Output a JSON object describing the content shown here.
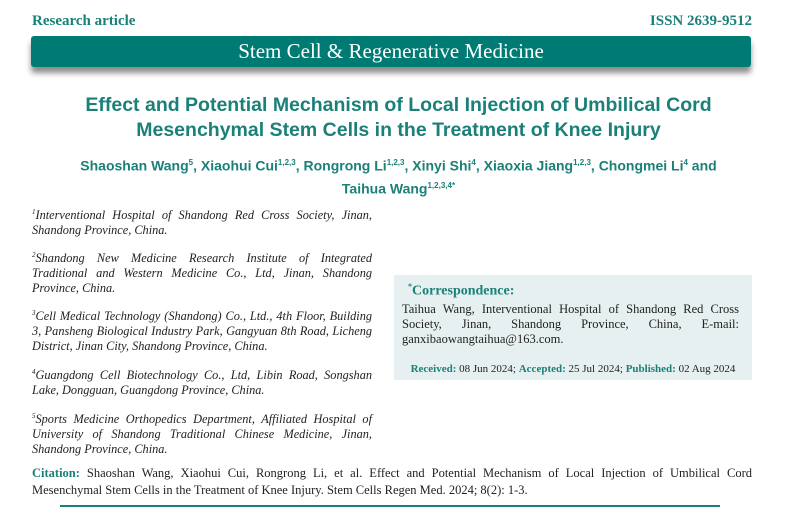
{
  "header": {
    "article_type": "Research article",
    "issn": "ISSN 2639-9512",
    "journal": "Stem Cell & Regenerative Medicine"
  },
  "title": "Effect and Potential Mechanism of Local Injection of Umbilical Cord Mesenchymal Stem Cells in the Treatment of Knee Injury",
  "authors": [
    {
      "name": "Shaoshan Wang",
      "sup": "5",
      "sep": ", "
    },
    {
      "name": "Xiaohui Cui",
      "sup": "1,2,3",
      "sep": ", "
    },
    {
      "name": "Rongrong Li",
      "sup": "1,2,3",
      "sep": ", "
    },
    {
      "name": "Xinyi Shi",
      "sup": "4",
      "sep": ", "
    },
    {
      "name": "Xiaoxia Jiang",
      "sup": "1,2,3",
      "sep": ", "
    },
    {
      "name": "Chongmei Li",
      "sup": "4",
      "sep": " and "
    },
    {
      "name": "Taihua Wang",
      "sup": "1,2,3,4*",
      "sep": ""
    }
  ],
  "affiliations": [
    {
      "num": "1",
      "text": "Interventional Hospital of Shandong Red Cross Society, Jinan, Shandong Province, China."
    },
    {
      "num": "2",
      "text": "Shandong New Medicine Research Institute of Integrated Traditional and Western Medicine Co., Ltd, Jinan, Shandong Province, China."
    },
    {
      "num": "3",
      "text": "Cell Medical Technology (Shandong) Co., Ltd., 4th Floor, Building 3, Pansheng Biological Industry Park, Gangyuan 8th Road, Licheng District, Jinan City, Shandong Province, China."
    },
    {
      "num": "4",
      "text": "Guangdong Cell Biotechnology Co., Ltd, Libin Road, Songshan Lake, Dongguan, Guangdong Province, China."
    },
    {
      "num": "5",
      "text": "Sports Medicine Orthopedics Department, Affiliated Hospital of University of Shandong Traditional Chinese Medicine, Jinan, Shandong Province, China."
    }
  ],
  "correspondence": {
    "mark": "*",
    "heading": "Correspondence:",
    "text": "Taihua Wang, Interventional Hospital of Shandong Red Cross Society, Jinan, Shandong Province, China, E-mail: ganxibaowangtaihua@163.com.",
    "received_label": "Received:",
    "received": " 08 Jun 2024; ",
    "accepted_label": "Accepted:",
    "accepted": " 25 Jul 2024; ",
    "published_label": "Published:",
    "published": " 02 Aug 2024"
  },
  "citation": {
    "label": "Citation:",
    "text": " Shaoshan Wang, Xiaohui Cui, Rongrong Li, et al. Effect and Potential Mechanism of Local Injection of Umbilical Cord Mesenchymal Stem Cells in the Treatment of Knee Injury. Stem Cells Regen Med. 2024; 8(2): 1-3."
  }
}
